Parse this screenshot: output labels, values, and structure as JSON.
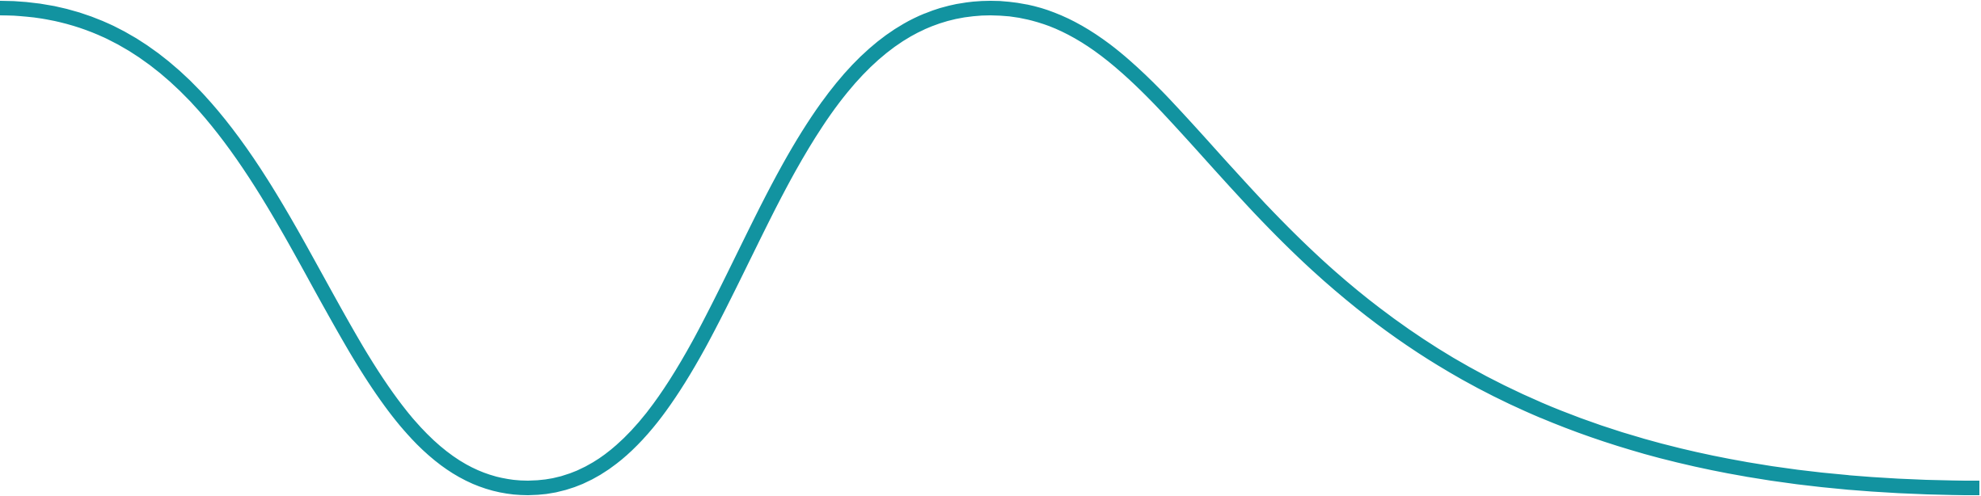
{
  "decoration": {
    "name": "wave-line",
    "stroke_color": "#1293a0",
    "background_color": "#ffffff"
  }
}
